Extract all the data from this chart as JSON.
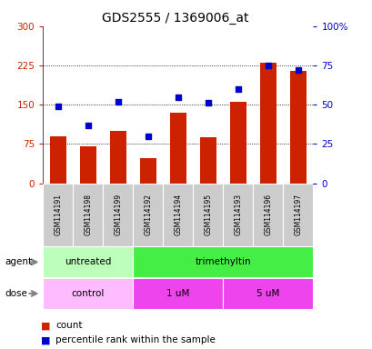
{
  "title": "GDS2555 / 1369006_at",
  "samples": [
    "GSM114191",
    "GSM114198",
    "GSM114199",
    "GSM114192",
    "GSM114194",
    "GSM114195",
    "GSM114193",
    "GSM114196",
    "GSM114197"
  ],
  "bar_values": [
    90,
    70,
    100,
    48,
    135,
    88,
    155,
    230,
    215
  ],
  "dot_values": [
    49,
    37,
    52,
    30,
    55,
    51,
    60,
    75,
    72
  ],
  "left_yticks": [
    0,
    75,
    150,
    225,
    300
  ],
  "right_yticks": [
    0,
    25,
    50,
    75,
    100
  ],
  "bar_color": "#cc2200",
  "dot_color": "#0000cc",
  "agent_labels": [
    {
      "text": "untreated",
      "start": 0,
      "end": 3,
      "color": "#bbffbb"
    },
    {
      "text": "trimethyltin",
      "start": 3,
      "end": 9,
      "color": "#44ee44"
    }
  ],
  "dose_labels": [
    {
      "text": "control",
      "start": 0,
      "end": 3,
      "color": "#ffbbff"
    },
    {
      "text": "1 uM",
      "start": 3,
      "end": 6,
      "color": "#ee44ee"
    },
    {
      "text": "5 uM",
      "start": 6,
      "end": 9,
      "color": "#ee44ee"
    }
  ],
  "legend_count_color": "#cc2200",
  "legend_dot_color": "#0000cc",
  "background_color": "#ffffff",
  "label_bg_color": "#cccccc",
  "title_color": "#000000",
  "title_fontsize": 10
}
